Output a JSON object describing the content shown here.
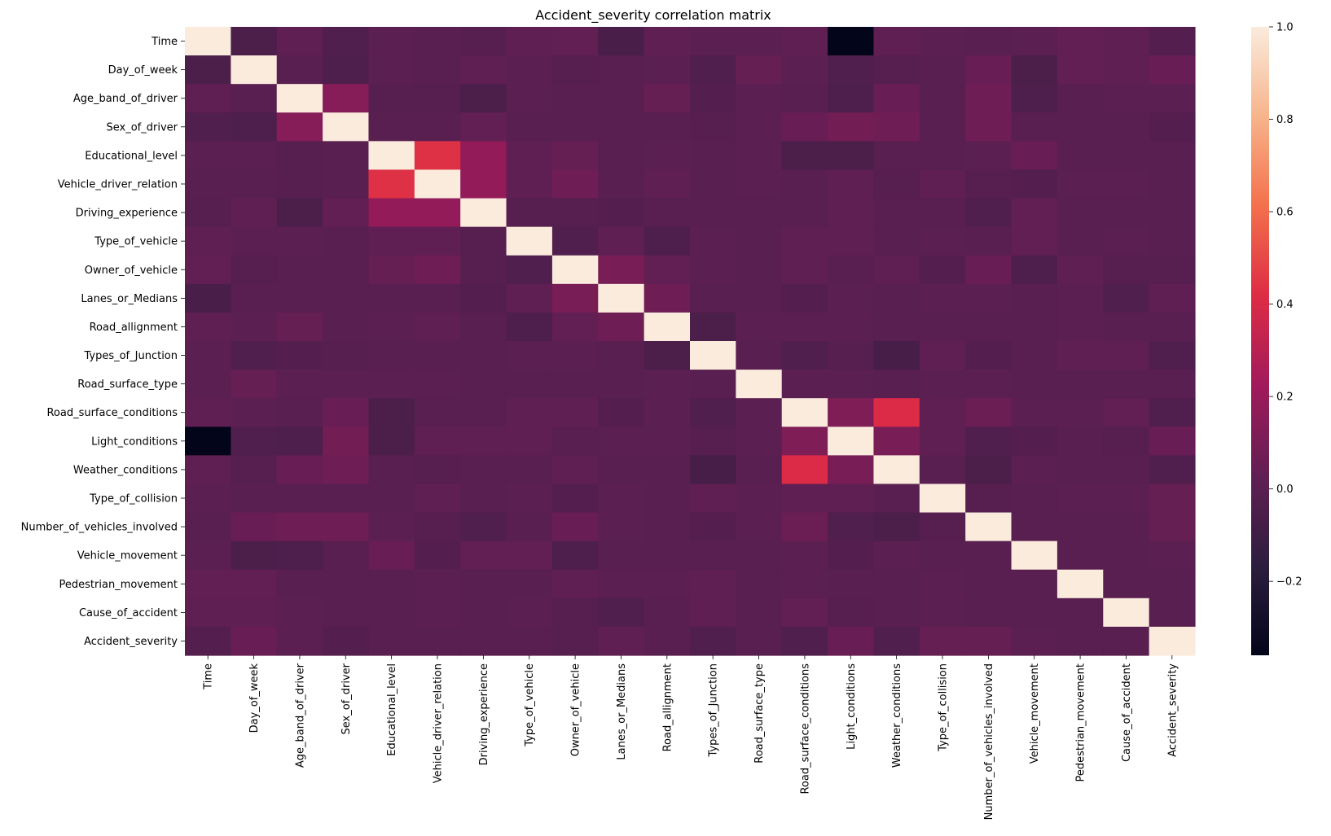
{
  "chart_data": {
    "type": "heatmap",
    "title": "Accident_severity correlation matrix",
    "xlabel": "",
    "ylabel": "",
    "labels": [
      "Time",
      "Day_of_week",
      "Age_band_of_driver",
      "Sex_of_driver",
      "Educational_level",
      "Vehicle_driver_relation",
      "Driving_experience",
      "Type_of_vehicle",
      "Owner_of_vehicle",
      "Lanes_or_Medians",
      "Road_allignment",
      "Types_of_Junction",
      "Road_surface_type",
      "Road_surface_conditions",
      "Light_conditions",
      "Weather_conditions",
      "Type_of_collision",
      "Number_of_vehicles_involved",
      "Vehicle_movement",
      "Pedestrian_movement",
      "Cause_of_accident",
      "Accident_severity"
    ],
    "values": [
      [
        1.0,
        -0.05,
        0.02,
        -0.03,
        0.01,
        0.0,
        -0.01,
        0.02,
        0.03,
        -0.06,
        0.02,
        0.01,
        0.01,
        0.02,
        -0.36,
        0.02,
        0.01,
        0.0,
        0.01,
        0.03,
        0.02,
        -0.02
      ],
      [
        -0.05,
        1.0,
        0.0,
        -0.04,
        0.01,
        0.0,
        0.02,
        0.01,
        -0.01,
        0.0,
        0.01,
        -0.03,
        0.04,
        0.01,
        -0.03,
        -0.01,
        0.0,
        0.05,
        -0.05,
        0.03,
        0.02,
        0.05
      ],
      [
        0.02,
        0.0,
        1.0,
        0.14,
        -0.01,
        -0.01,
        -0.05,
        0.01,
        0.0,
        0.0,
        0.04,
        -0.02,
        0.01,
        0.0,
        -0.04,
        0.05,
        0.0,
        0.07,
        -0.04,
        0.0,
        0.01,
        0.01
      ],
      [
        -0.03,
        -0.04,
        0.14,
        1.0,
        0.0,
        0.0,
        0.03,
        0.0,
        0.0,
        0.0,
        0.0,
        -0.01,
        0.01,
        0.05,
        0.08,
        0.07,
        0.0,
        0.07,
        0.0,
        0.0,
        0.0,
        -0.02
      ],
      [
        0.01,
        0.01,
        -0.01,
        0.0,
        1.0,
        0.43,
        0.18,
        0.02,
        0.04,
        0.0,
        0.01,
        0.0,
        0.01,
        -0.05,
        -0.05,
        0.0,
        0.0,
        0.01,
        0.05,
        0.0,
        0.0,
        0.0
      ],
      [
        0.0,
        0.0,
        -0.01,
        0.0,
        0.43,
        1.0,
        0.18,
        0.02,
        0.07,
        0.0,
        0.02,
        0.0,
        0.01,
        0.0,
        0.02,
        -0.01,
        0.02,
        -0.01,
        -0.02,
        0.01,
        0.01,
        0.0
      ],
      [
        -0.01,
        0.02,
        -0.05,
        0.03,
        0.18,
        0.18,
        1.0,
        -0.01,
        -0.01,
        -0.02,
        0.0,
        0.0,
        0.0,
        0.0,
        0.02,
        0.0,
        0.0,
        -0.03,
        0.03,
        0.0,
        0.0,
        0.0
      ],
      [
        0.02,
        0.01,
        0.01,
        0.0,
        0.02,
        0.02,
        -0.01,
        1.0,
        -0.03,
        0.02,
        -0.04,
        0.01,
        0.0,
        0.02,
        0.02,
        0.0,
        0.01,
        0.0,
        0.03,
        0.0,
        0.01,
        0.0
      ],
      [
        0.03,
        -0.01,
        0.0,
        0.0,
        0.04,
        0.07,
        -0.01,
        -0.03,
        1.0,
        0.1,
        0.03,
        0.01,
        0.0,
        0.02,
        0.0,
        0.02,
        -0.02,
        0.05,
        -0.04,
        0.02,
        -0.01,
        -0.01
      ],
      [
        -0.06,
        0.0,
        0.0,
        0.0,
        0.0,
        0.0,
        -0.02,
        0.02,
        0.1,
        1.0,
        0.07,
        0.0,
        0.0,
        -0.02,
        0.01,
        0.0,
        0.01,
        0.01,
        0.0,
        0.01,
        -0.03,
        0.02
      ],
      [
        0.02,
        0.01,
        0.04,
        0.0,
        0.01,
        0.02,
        0.0,
        -0.04,
        0.03,
        0.07,
        1.0,
        -0.05,
        0.01,
        0.01,
        0.01,
        0.0,
        0.0,
        0.0,
        0.0,
        0.01,
        0.0,
        0.0
      ],
      [
        0.01,
        -0.03,
        -0.02,
        -0.01,
        0.0,
        0.0,
        0.0,
        0.01,
        0.01,
        0.0,
        -0.05,
        1.0,
        0.0,
        -0.03,
        -0.01,
        -0.07,
        0.02,
        -0.02,
        0.0,
        0.02,
        0.02,
        -0.03
      ],
      [
        0.01,
        0.04,
        0.01,
        0.01,
        0.01,
        0.01,
        0.0,
        0.0,
        0.0,
        0.0,
        0.01,
        0.0,
        1.0,
        0.01,
        0.01,
        0.0,
        0.01,
        0.01,
        0.0,
        0.0,
        0.0,
        0.0
      ],
      [
        0.02,
        0.01,
        0.0,
        0.05,
        -0.05,
        0.0,
        0.0,
        0.02,
        0.02,
        -0.02,
        0.01,
        -0.03,
        0.01,
        1.0,
        0.12,
        0.41,
        0.02,
        0.06,
        0.01,
        0.01,
        0.03,
        -0.03
      ],
      [
        -0.36,
        -0.03,
        -0.04,
        0.08,
        -0.05,
        0.02,
        0.02,
        0.02,
        0.0,
        0.01,
        0.01,
        -0.01,
        0.01,
        0.12,
        1.0,
        0.1,
        0.02,
        -0.03,
        -0.02,
        0.0,
        -0.01,
        0.05
      ],
      [
        0.02,
        -0.01,
        0.05,
        0.07,
        0.0,
        -0.01,
        0.0,
        0.0,
        0.02,
        0.0,
        0.0,
        -0.07,
        0.0,
        0.41,
        0.1,
        1.0,
        0.0,
        -0.05,
        0.01,
        0.0,
        0.0,
        -0.03
      ],
      [
        0.01,
        0.0,
        0.0,
        0.0,
        0.0,
        0.02,
        0.0,
        0.01,
        -0.02,
        0.01,
        0.0,
        0.02,
        0.01,
        0.02,
        0.02,
        0.0,
        1.0,
        -0.01,
        0.0,
        0.01,
        0.01,
        0.04
      ],
      [
        0.0,
        0.05,
        0.07,
        0.07,
        0.01,
        -0.01,
        -0.03,
        0.0,
        0.05,
        0.01,
        0.0,
        -0.02,
        0.01,
        0.06,
        -0.03,
        -0.05,
        -0.01,
        1.0,
        0.0,
        0.0,
        0.0,
        0.04
      ],
      [
        0.01,
        -0.05,
        -0.04,
        0.0,
        0.05,
        -0.02,
        0.03,
        0.03,
        -0.04,
        0.0,
        0.0,
        0.0,
        0.0,
        0.01,
        -0.02,
        0.01,
        0.0,
        0.0,
        1.0,
        0.0,
        0.0,
        0.01
      ],
      [
        0.03,
        0.03,
        0.0,
        0.0,
        0.0,
        0.01,
        0.0,
        0.0,
        0.02,
        0.01,
        0.01,
        0.02,
        0.0,
        0.01,
        0.0,
        0.0,
        0.01,
        0.0,
        0.0,
        1.0,
        0.0,
        0.0
      ],
      [
        0.02,
        0.02,
        0.01,
        0.0,
        0.0,
        0.01,
        0.0,
        0.01,
        -0.01,
        -0.03,
        0.0,
        0.02,
        0.0,
        0.03,
        -0.01,
        0.0,
        0.01,
        0.0,
        0.0,
        0.0,
        1.0,
        0.0
      ],
      [
        -0.02,
        0.05,
        0.01,
        -0.02,
        0.0,
        0.0,
        0.0,
        0.0,
        -0.01,
        0.02,
        0.0,
        -0.03,
        0.0,
        -0.03,
        0.05,
        -0.03,
        0.04,
        0.04,
        0.01,
        0.0,
        0.0,
        1.0
      ]
    ],
    "colorbar": {
      "min": -0.36,
      "max": 1.0,
      "ticks": [
        -0.2,
        0.0,
        0.2,
        0.4,
        0.6,
        0.8,
        1.0
      ],
      "tick_labels": [
        "−0.2",
        "0.0",
        "0.2",
        "0.4",
        "0.6",
        "0.8",
        "1.0"
      ],
      "colormap": "rocket",
      "stops": [
        "#03051a",
        "#2c1e3e",
        "#611f53",
        "#a11a5b",
        "#dd2c45",
        "#f3704c",
        "#f7b48b",
        "#faebdd"
      ]
    }
  }
}
